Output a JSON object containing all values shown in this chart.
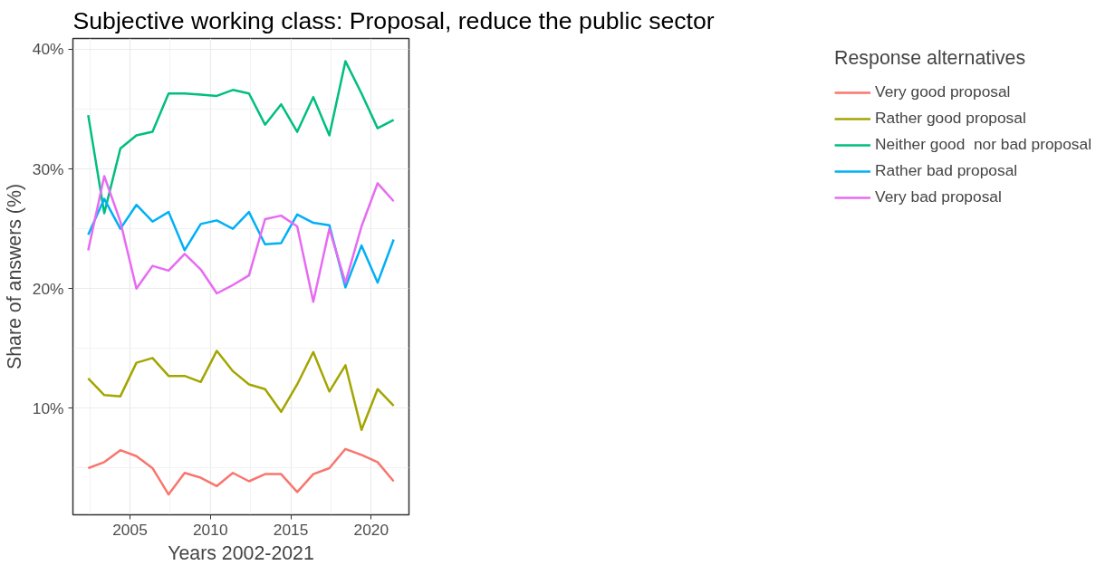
{
  "chart_data": {
    "type": "line",
    "title": "Subjective working class: Proposal, reduce the public sector",
    "xlabel": "Years 2002-2021",
    "ylabel": "Share of answers (%)",
    "legend_title": "Response alternatives",
    "x": [
      2002.4,
      2003.4,
      2004.4,
      2005.4,
      2006.4,
      2007.4,
      2008.4,
      2009.4,
      2010.4,
      2011.4,
      2012.4,
      2013.4,
      2014.4,
      2015.4,
      2016.4,
      2017.4,
      2018.4,
      2019.4,
      2020.4,
      2021.4
    ],
    "series": [
      {
        "name": "Very good proposal",
        "color": "#f8766d",
        "values": [
          5.0,
          5.5,
          6.5,
          6.0,
          5.0,
          2.8,
          4.6,
          4.2,
          3.5,
          4.6,
          3.9,
          4.5,
          4.5,
          3.0,
          4.5,
          5.0,
          6.6,
          6.1,
          5.5,
          3.9
        ]
      },
      {
        "name": "Rather good proposal",
        "color": "#a3a500",
        "values": [
          12.5,
          11.1,
          11.0,
          13.8,
          14.2,
          12.7,
          12.7,
          12.2,
          14.8,
          13.1,
          12.0,
          11.6,
          9.7,
          12.0,
          14.7,
          11.4,
          13.6,
          8.2,
          11.6,
          10.2
        ]
      },
      {
        "name": "Neither good  nor bad proposal",
        "color": "#00bf7d",
        "values": [
          34.5,
          26.3,
          31.7,
          32.8,
          33.1,
          36.3,
          36.3,
          36.2,
          36.1,
          36.6,
          36.3,
          33.7,
          35.4,
          33.1,
          36.0,
          32.8,
          39.0,
          36.3,
          33.4,
          34.1
        ]
      },
      {
        "name": "Rather bad proposal",
        "color": "#00b0f6",
        "values": [
          24.5,
          27.5,
          25.0,
          27.0,
          25.6,
          26.4,
          23.2,
          25.4,
          25.7,
          25.0,
          26.4,
          23.7,
          23.8,
          26.2,
          25.5,
          25.3,
          20.1,
          23.6,
          20.5,
          24.1
        ]
      },
      {
        "name": "Very bad proposal",
        "color": "#e76bf3",
        "values": [
          23.2,
          29.4,
          25.6,
          20.0,
          21.9,
          21.5,
          22.9,
          21.6,
          19.6,
          20.3,
          21.1,
          25.8,
          26.1,
          25.2,
          18.9,
          25.0,
          20.5,
          25.2,
          28.8,
          27.3
        ]
      }
    ],
    "xlim": [
      2001.45,
      2022.35
    ],
    "ylim": [
      1.1,
      40.9
    ],
    "xticks": [
      2005,
      2010,
      2015,
      2020
    ],
    "yticks": [
      {
        "value": 10,
        "label": "10%"
      },
      {
        "value": 20,
        "label": "20%"
      },
      {
        "value": 30,
        "label": "30%"
      },
      {
        "value": 40,
        "label": "40%"
      }
    ],
    "grid": true,
    "legend": "right",
    "marker": "none",
    "line_style": "solid"
  }
}
